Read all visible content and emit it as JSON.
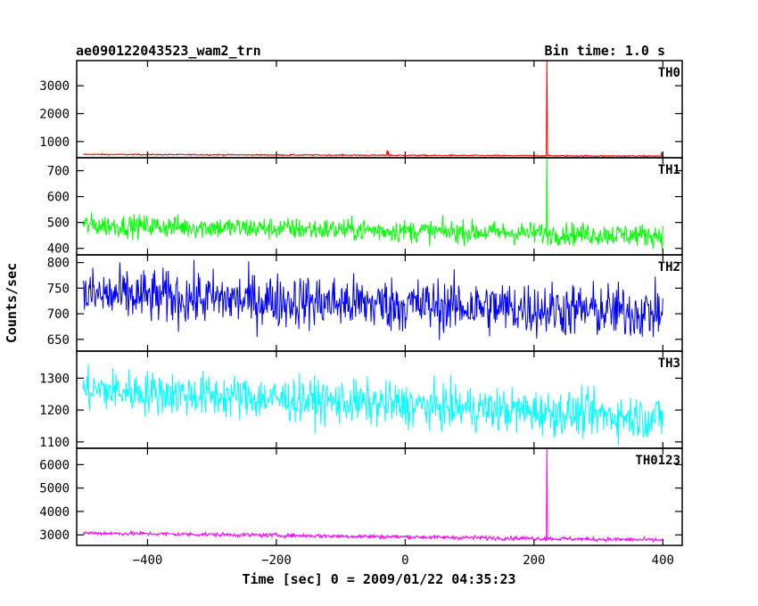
{
  "chart_data": {
    "type": "line",
    "title": "ae090122043523_wam2_trn",
    "subtitle": "Bin time: 1.0 s",
    "xlabel": "Time [sec] 0 = 2009/01/22 04:35:23",
    "ylabel": "Counts/sec",
    "xlim": [
      -510,
      430
    ],
    "x_ticks": [
      -400,
      -200,
      0,
      200,
      400
    ],
    "x_tick_labels": [
      "−400",
      "−200",
      "0",
      "200",
      "400"
    ],
    "data_x_range": [
      -500,
      400
    ],
    "bin_time_s": 1.0,
    "panels": [
      {
        "name": "TH0",
        "color": "#ff0000",
        "ylim": [
          420,
          3900
        ],
        "y_ticks": [
          1000,
          2000,
          3000
        ],
        "baseline": [
          [
            -500,
            540
          ],
          [
            400,
            480
          ]
        ],
        "noise": 12,
        "features": [
          {
            "x": 220,
            "value": 3950
          },
          {
            "x": -28,
            "value": 690
          },
          {
            "x": -26,
            "value": 650
          },
          {
            "x": 398,
            "value": 610
          }
        ]
      },
      {
        "name": "TH1",
        "color": "#00ff00",
        "ylim": [
          375,
          750
        ],
        "y_ticks": [
          400,
          500,
          600,
          700
        ],
        "baseline": [
          [
            -500,
            490
          ],
          [
            400,
            450
          ]
        ],
        "noise": 22,
        "features": [
          {
            "x": 220,
            "value": 760
          }
        ]
      },
      {
        "name": "TH2",
        "color": "#0000ff",
        "ylim": [
          627,
          815
        ],
        "y_ticks": [
          650,
          700,
          750,
          800
        ],
        "baseline": [
          [
            -500,
            737
          ],
          [
            400,
            702
          ]
        ],
        "noise": 27,
        "features": []
      },
      {
        "name": "TH3",
        "color": "#00ffff",
        "ylim": [
          1080,
          1385
        ],
        "y_ticks": [
          1100,
          1200,
          1300
        ],
        "baseline": [
          [
            -500,
            1265
          ],
          [
            400,
            1175
          ]
        ],
        "noise": 35,
        "features": []
      },
      {
        "name": "TH0123",
        "color": "#ff00ff",
        "ylim": [
          2550,
          6700
        ],
        "y_ticks": [
          3000,
          4000,
          5000,
          6000
        ],
        "baseline": [
          [
            -500,
            3080
          ],
          [
            400,
            2780
          ]
        ],
        "noise": 45,
        "features": [
          {
            "x": 220,
            "value": 6700
          }
        ]
      }
    ],
    "grid": false,
    "legend": "none"
  }
}
